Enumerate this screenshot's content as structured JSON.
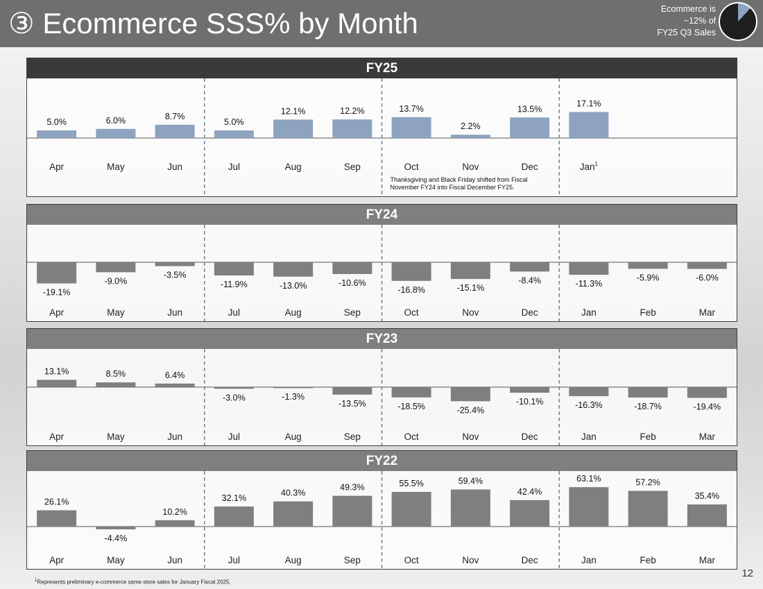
{
  "header": {
    "title": "③ Ecommerce SSS% by Month",
    "badge_lines": [
      "Ecommerce is",
      "~12% of",
      "FY25 Q3 Sales"
    ],
    "colors": {
      "bar": "#6f6f6f",
      "text": "#ffffff"
    }
  },
  "chart_data": [
    {
      "type": "bar",
      "title": "FY25",
      "categories": [
        "Apr",
        "May",
        "Jun",
        "Jul",
        "Aug",
        "Sep",
        "Oct",
        "Nov",
        "Dec",
        "Jan",
        "",
        ""
      ],
      "values": [
        5.0,
        6.0,
        8.7,
        5.0,
        12.1,
        12.2,
        13.7,
        2.2,
        13.5,
        17.1,
        null,
        null
      ],
      "labels": [
        "5.0%",
        "6.0%",
        "8.7%",
        "5.0%",
        "12.1%",
        "12.2%",
        "13.7%",
        "2.2%",
        "13.5%",
        "17.1%",
        "",
        ""
      ],
      "sup": {
        "9": "1"
      },
      "annotation": [
        "Thanksgiving and Black Friday shifted from Fiscal",
        "November FY24 into Fiscal December FY25."
      ],
      "ylim": [
        -10,
        20
      ],
      "bar_color": "#8da3c0",
      "header_color": "#3a3a3a"
    },
    {
      "type": "bar",
      "title": "FY24",
      "categories": [
        "Apr",
        "May",
        "Jun",
        "Jul",
        "Aug",
        "Sep",
        "Oct",
        "Nov",
        "Dec",
        "Jan",
        "Feb",
        "Mar"
      ],
      "values": [
        -19.1,
        -9.0,
        -3.5,
        -11.9,
        -13.0,
        -10.6,
        -16.8,
        -15.1,
        -8.4,
        -11.3,
        -5.9,
        -6.0
      ],
      "labels": [
        "-19.1%",
        "-9.0%",
        "-3.5%",
        "-11.9%",
        "-13.0%",
        "-10.6%",
        "-16.8%",
        "-15.1%",
        "-8.4%",
        "-11.3%",
        "-5.9%",
        "-6.0%"
      ],
      "ylim": [
        -30,
        30
      ],
      "bar_color": "#7f7f7f",
      "header_color": "#7f7f7f"
    },
    {
      "type": "bar",
      "title": "FY23",
      "categories": [
        "Apr",
        "May",
        "Jun",
        "Jul",
        "Aug",
        "Sep",
        "Oct",
        "Nov",
        "Dec",
        "Jan",
        "Feb",
        "Mar"
      ],
      "values": [
        13.1,
        8.5,
        6.4,
        -3.0,
        -1.3,
        -13.5,
        -18.5,
        -25.4,
        -10.1,
        -16.3,
        -18.7,
        -19.4
      ],
      "labels": [
        "13.1%",
        "8.5%",
        "6.4%",
        "-3.0%",
        "-1.3%",
        "-13.5%",
        "-18.5%",
        "-25.4%",
        "-10.1%",
        "-16.3%",
        "-18.7%",
        "-19.4%"
      ],
      "ylim": [
        -40,
        40
      ],
      "bar_color": "#7f7f7f",
      "header_color": "#7f7f7f"
    },
    {
      "type": "bar",
      "title": "FY22",
      "categories": [
        "Apr",
        "May",
        "Jun",
        "Jul",
        "Aug",
        "Sep",
        "Oct",
        "Nov",
        "Dec",
        "Jan",
        "Feb",
        "Mar"
      ],
      "values": [
        26.1,
        -4.4,
        10.2,
        32.1,
        40.3,
        49.3,
        55.5,
        59.4,
        42.4,
        63.1,
        57.2,
        35.4
      ],
      "labels": [
        "26.1%",
        "-4.4%",
        "10.2%",
        "32.1%",
        "40.3%",
        "49.3%",
        "55.5%",
        "59.4%",
        "42.4%",
        "63.1%",
        "57.2%",
        "35.4%"
      ],
      "ylim": [
        -40,
        80
      ],
      "bar_color": "#7f7f7f",
      "header_color": "#7f7f7f"
    }
  ],
  "footnote": {
    "marker": "1",
    "text": "Represents preliminary e-commerce same store sales for January Fiscal 2025."
  },
  "page_number": "12"
}
